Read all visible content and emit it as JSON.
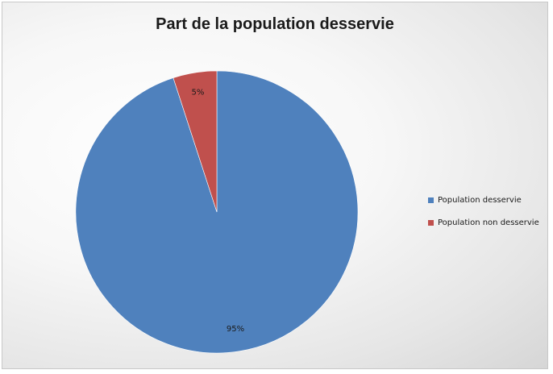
{
  "chart_data": {
    "type": "pie",
    "title": "Part de la population desservie",
    "slices": [
      {
        "name": "Population desservie",
        "value": 95,
        "label": "95%",
        "color": "#4f81bd"
      },
      {
        "name": "Population non desservie",
        "value": 5,
        "label": "5%",
        "color": "#c0504d"
      }
    ],
    "legend_position": "right"
  }
}
